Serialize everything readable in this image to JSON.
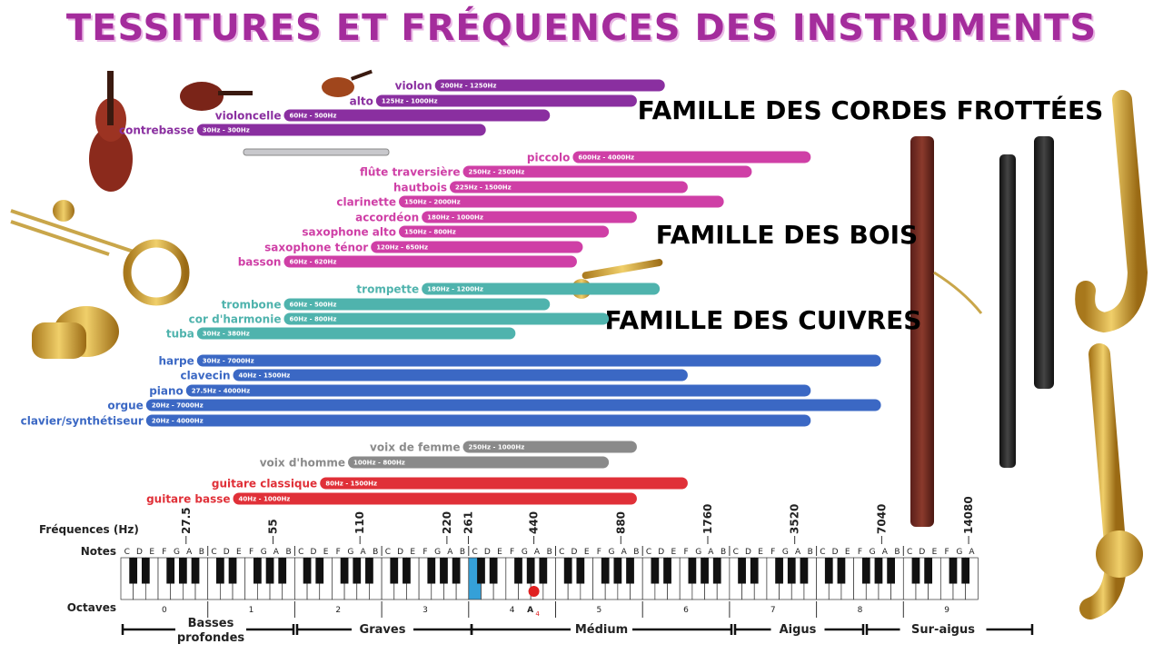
{
  "title": "TESSITURES ET FRÉQUENCES DES INSTRUMENTS",
  "colors": {
    "cordes": "#8a2fa0",
    "bois": "#cf3fa6",
    "cuivres": "#4fb3ad",
    "claviers": "#3b68c4",
    "voix": "#8a8a8a",
    "guitares": "#e03038",
    "title": "#a42c9c",
    "marker": "#e02020",
    "highlight": "#35a0d8"
  },
  "families": [
    {
      "label": "FAMILLE DES CORDES FROTTÉES",
      "color": "#8a2fa0"
    },
    {
      "label": "FAMILLE DES BOIS",
      "color": "#cf3fa6"
    },
    {
      "label": "FAMILLE DES CUIVRES",
      "color": "#4fb3ad"
    }
  ],
  "chart_data": {
    "type": "bar",
    "orientation": "horizontal",
    "x_scale": "log2",
    "xlabel": "Fréquences (Hz)",
    "xlim": [
      16.35,
      16744
    ],
    "freq_ticks": [
      "27.5",
      "55",
      "110",
      "220",
      "261",
      "440",
      "880",
      "1760",
      "3520",
      "7040",
      "14080"
    ],
    "highlight_tick": "440",
    "series": [
      {
        "name": "violon",
        "min": 200,
        "max": 1250,
        "range_label": "200Hz - 1250Hz",
        "color": "#8a2fa0"
      },
      {
        "name": "alto",
        "min": 125,
        "max": 1000,
        "range_label": "125Hz - 1000Hz",
        "color": "#8a2fa0"
      },
      {
        "name": "violoncelle",
        "min": 60,
        "max": 500,
        "range_label": "60Hz - 500Hz",
        "color": "#8a2fa0"
      },
      {
        "name": "contrebasse",
        "min": 30,
        "max": 300,
        "range_label": "30Hz - 300Hz",
        "color": "#8a2fa0"
      },
      {
        "name": "piccolo",
        "min": 600,
        "max": 4000,
        "range_label": "600Hz - 4000Hz",
        "color": "#cf3fa6"
      },
      {
        "name": "flûte traversière",
        "min": 250,
        "max": 2500,
        "range_label": "250Hz - 2500Hz",
        "color": "#cf3fa6"
      },
      {
        "name": "hautbois",
        "min": 225,
        "max": 1500,
        "range_label": "225Hz - 1500Hz",
        "color": "#cf3fa6"
      },
      {
        "name": "clarinette",
        "min": 150,
        "max": 2000,
        "range_label": "150Hz - 2000Hz",
        "color": "#cf3fa6"
      },
      {
        "name": "accordéon",
        "min": 180,
        "max": 1000,
        "range_label": "180Hz - 1000Hz",
        "color": "#cf3fa6"
      },
      {
        "name": "saxophone alto",
        "min": 150,
        "max": 800,
        "range_label": "150Hz - 800Hz",
        "color": "#cf3fa6"
      },
      {
        "name": "saxophone ténor",
        "min": 120,
        "max": 650,
        "range_label": "120Hz - 650Hz",
        "color": "#cf3fa6"
      },
      {
        "name": "basson",
        "min": 60,
        "max": 620,
        "range_label": "60Hz - 620Hz",
        "color": "#cf3fa6"
      },
      {
        "name": "trompette",
        "min": 180,
        "max": 1200,
        "range_label": "180Hz - 1200Hz",
        "color": "#4fb3ad"
      },
      {
        "name": "trombone",
        "min": 60,
        "max": 500,
        "range_label": "60Hz - 500Hz",
        "color": "#4fb3ad"
      },
      {
        "name": "cor d'harmonie",
        "min": 60,
        "max": 800,
        "range_label": "60Hz - 800Hz",
        "color": "#4fb3ad"
      },
      {
        "name": "tuba",
        "min": 30,
        "max": 380,
        "range_label": "30Hz - 380Hz",
        "color": "#4fb3ad"
      },
      {
        "name": "harpe",
        "min": 30,
        "max": 7000,
        "range_label": "30Hz - 7000Hz",
        "color": "#3b68c4"
      },
      {
        "name": "clavecin",
        "min": 40,
        "max": 1500,
        "range_label": "40Hz - 1500Hz",
        "color": "#3b68c4"
      },
      {
        "name": "piano",
        "min": 27.5,
        "max": 4000,
        "range_label": "27.5Hz - 4000Hz",
        "color": "#3b68c4"
      },
      {
        "name": "orgue",
        "min": 20,
        "max": 7000,
        "range_label": "20Hz - 7000Hz",
        "color": "#3b68c4"
      },
      {
        "name": "clavier/synthétiseur",
        "min": 20,
        "max": 4000,
        "range_label": "20Hz - 4000Hz",
        "color": "#3b68c4"
      },
      {
        "name": "voix de femme",
        "min": 250,
        "max": 1000,
        "range_label": "250Hz - 1000Hz",
        "color": "#8a8a8a"
      },
      {
        "name": "voix d'homme",
        "min": 100,
        "max": 800,
        "range_label": "100Hz - 800Hz",
        "color": "#8a8a8a"
      },
      {
        "name": "guitare classique",
        "min": 80,
        "max": 1500,
        "range_label": "80Hz - 1500Hz",
        "color": "#e03038"
      },
      {
        "name": "guitare basse",
        "min": 40,
        "max": 1000,
        "range_label": "40Hz - 1000Hz",
        "color": "#e03038"
      }
    ]
  },
  "keyboard": {
    "notes_label": "Notes",
    "note_names": [
      "C",
      "D",
      "E",
      "F",
      "G",
      "A",
      "B"
    ],
    "octaves_label": "Octaves",
    "octaves": [
      "0",
      "1",
      "2",
      "3",
      "4",
      "5",
      "6",
      "7",
      "8",
      "9"
    ],
    "marker_label": "A",
    "marker_sub": "4"
  },
  "bands": [
    "Basses profondes",
    "Graves",
    "Médium",
    "Aigus",
    "Sur-aigus"
  ]
}
